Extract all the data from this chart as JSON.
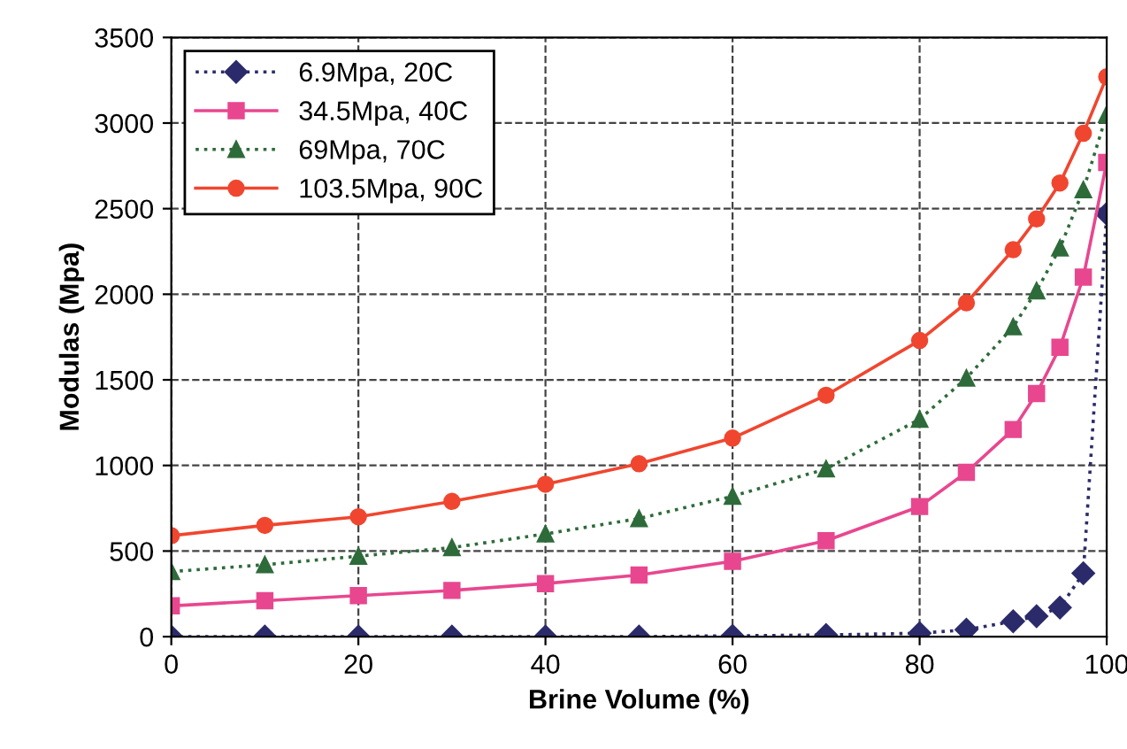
{
  "chart_data": {
    "type": "line",
    "xlabel": "Brine Volume (%)",
    "ylabel": "Modulas (Mpa)",
    "x": [
      0,
      10,
      20,
      30,
      40,
      50,
      60,
      70,
      80,
      85,
      90,
      92.5,
      95,
      97.5,
      100
    ],
    "series": [
      {
        "name": "6.9Mpa, 20C",
        "color": "#2b2b6b",
        "marker": "diamond",
        "line_style": "dotted",
        "values": [
          0,
          0,
          0,
          0,
          0,
          0,
          5,
          10,
          20,
          40,
          90,
          120,
          170,
          370,
          2470
        ]
      },
      {
        "name": "34.5Mpa, 40C",
        "color": "#e8478f",
        "marker": "square",
        "line_style": "solid",
        "values": [
          180,
          210,
          240,
          270,
          310,
          360,
          440,
          560,
          760,
          960,
          1210,
          1420,
          1690,
          2100,
          2770
        ]
      },
      {
        "name": "69Mpa, 70C",
        "color": "#2e6b3a",
        "marker": "triangle",
        "line_style": "dotted",
        "values": [
          380,
          420,
          470,
          520,
          600,
          690,
          820,
          980,
          1270,
          1510,
          1810,
          2020,
          2270,
          2610,
          3050
        ]
      },
      {
        "name": "103.5Mpa, 90C",
        "color": "#f0462f",
        "marker": "circle",
        "line_style": "solid",
        "values": [
          590,
          650,
          700,
          790,
          890,
          1010,
          1160,
          1410,
          1730,
          1950,
          2260,
          2440,
          2650,
          2940,
          3270
        ]
      }
    ],
    "xlim": [
      0,
      100
    ],
    "xticks": [
      0,
      20,
      40,
      60,
      80,
      100
    ],
    "ylim": [
      0,
      3500
    ],
    "yticks": [
      0,
      500,
      1000,
      1500,
      2000,
      2500,
      3000,
      3500
    ],
    "grid": true,
    "legend": "top left"
  }
}
